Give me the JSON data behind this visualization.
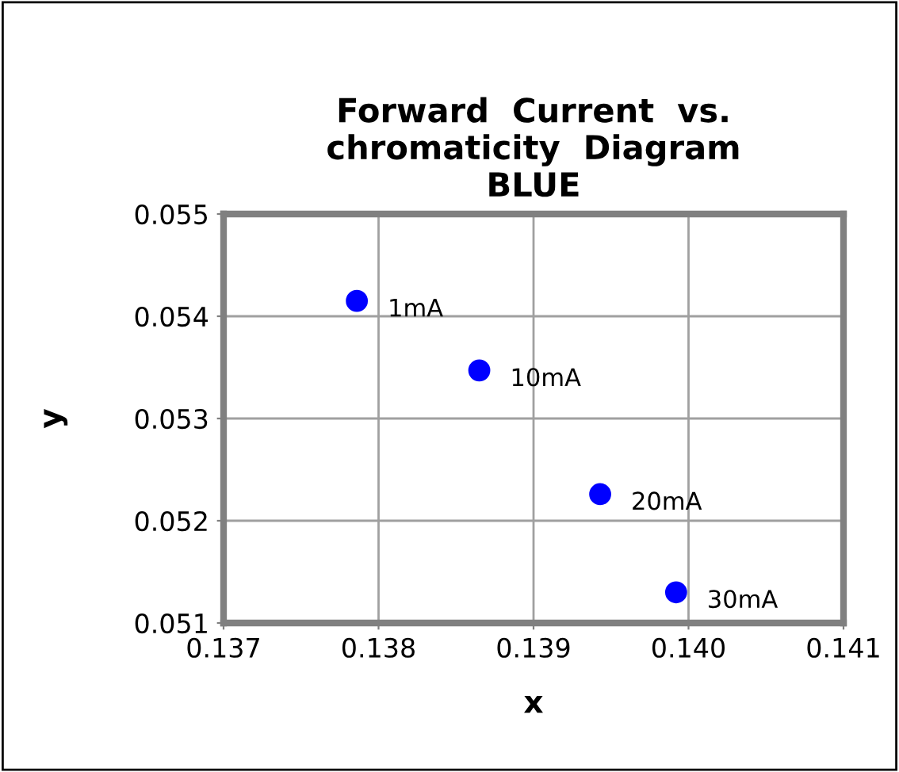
{
  "chart_data": {
    "type": "scatter",
    "title": "Forward  Current  vs.\nchromaticity  Diagram\nBLUE",
    "xlabel": "x",
    "ylabel": "y",
    "x": [
      0.13786,
      0.13865,
      0.13943,
      0.13992
    ],
    "series": [
      {
        "color": "#0000ff",
        "values": [
          0.05415,
          0.05347,
          0.05226,
          0.0513
        ]
      }
    ],
    "annotations": [
      {
        "text": "1mA",
        "x": 0.13786,
        "y": 0.05415
      },
      {
        "text": "10mA",
        "x": 0.13865,
        "y": 0.05347
      },
      {
        "text": "20mA",
        "x": 0.13943,
        "y": 0.05226
      },
      {
        "text": "30mA",
        "x": 0.13992,
        "y": 0.0513
      }
    ],
    "xlim": [
      0.137,
      0.141
    ],
    "xticks": [
      0.137,
      0.138,
      0.139,
      {
        "value": 0.14,
        "label": "0.140"
      },
      0.141
    ],
    "ylim": [
      0.051,
      0.055
    ],
    "yticks": [
      0.051,
      0.052,
      0.053,
      0.054,
      0.055
    ],
    "grid": true,
    "marker": "circle"
  }
}
